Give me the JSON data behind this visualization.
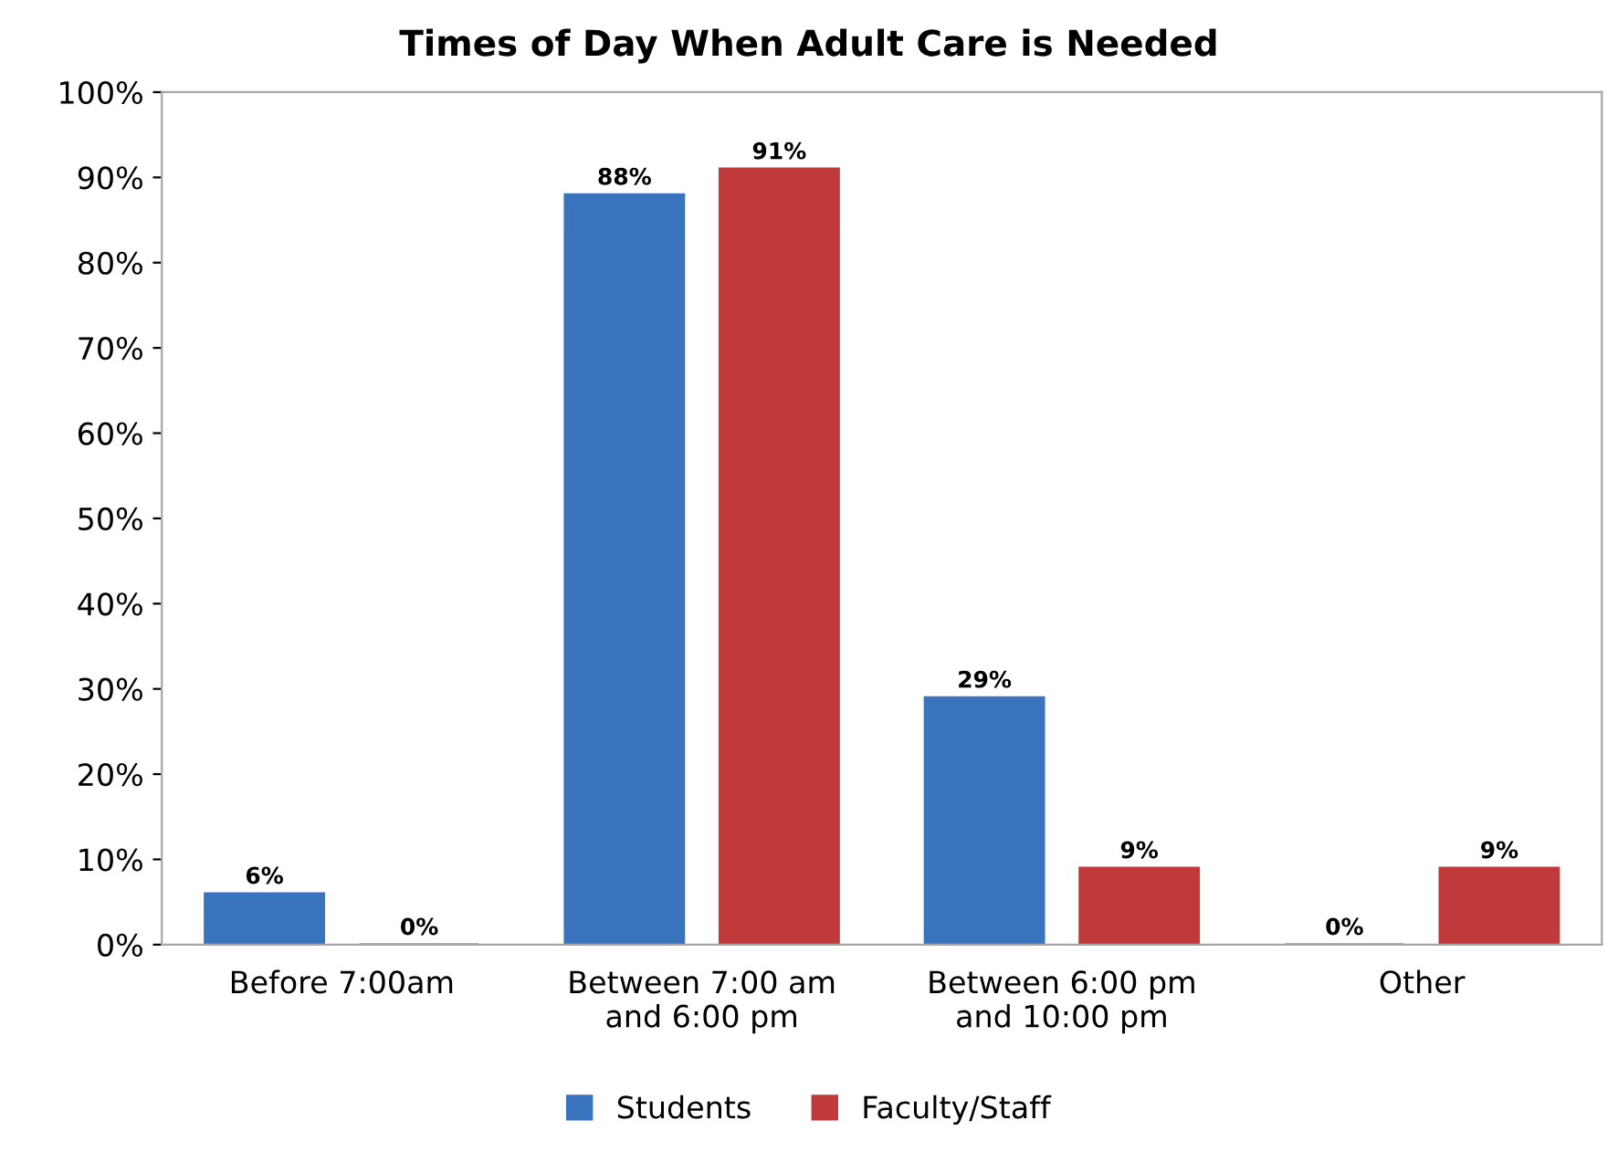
{
  "chart_data": {
    "type": "bar",
    "title": "Times of Day When Adult Care is Needed",
    "categories": [
      "Before 7:00am",
      "Between 7:00 am\nand 6:00 pm",
      "Between 6:00 pm\nand 10:00 pm",
      "Other"
    ],
    "series": [
      {
        "name": "Students",
        "color": "#3a73be",
        "values": [
          6,
          88,
          29,
          0
        ],
        "value_labels": [
          "6%",
          "88%",
          "29%",
          "0%"
        ]
      },
      {
        "name": "Faculty/Staff",
        "color": "#c0393b",
        "values": [
          0,
          91,
          9,
          9
        ],
        "value_labels": [
          "0%",
          "91%",
          "9%",
          "9%"
        ]
      }
    ],
    "ylim": [
      0,
      100
    ],
    "yticks": [
      {
        "value": 0,
        "label": "0%"
      },
      {
        "value": 10,
        "label": "10%"
      },
      {
        "value": 20,
        "label": "20%"
      },
      {
        "value": 30,
        "label": "30%"
      },
      {
        "value": 40,
        "label": "40%"
      },
      {
        "value": 50,
        "label": "50%"
      },
      {
        "value": 60,
        "label": "60%"
      },
      {
        "value": 70,
        "label": "70%"
      },
      {
        "value": 80,
        "label": "80%"
      },
      {
        "value": 90,
        "label": "90%"
      },
      {
        "value": 100,
        "label": "100%"
      }
    ],
    "grid": false,
    "legend": "bottom"
  }
}
